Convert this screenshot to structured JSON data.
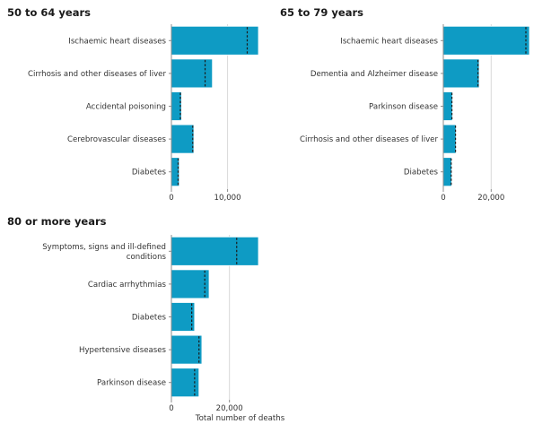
{
  "colors": {
    "bar": "#0e9bc4",
    "reference_line": "#1a1a1a"
  },
  "chart_data": [
    {
      "type": "bar",
      "orientation": "horizontal",
      "title": "50 to 64 years",
      "categories": [
        "Ischaemic heart diseases",
        "Cirrhosis and other diseases of liver",
        "Accidental poisoning",
        "Cerebrovascular diseases",
        "Diabetes"
      ],
      "values": [
        15500,
        7300,
        1800,
        4000,
        1400
      ],
      "reference_values": [
        13500,
        6000,
        1600,
        3800,
        1200
      ],
      "xlim": [
        0,
        15500
      ],
      "xticks": [
        0,
        10000
      ],
      "xtick_labels": [
        "0",
        "10,000"
      ],
      "xlabel": "",
      "grid": true,
      "legend": "none"
    },
    {
      "type": "bar",
      "orientation": "horizontal",
      "title": "65 to 79 years",
      "categories": [
        "Ischaemic heart diseases",
        "Dementia and Alzheimer disease",
        "Parkinson disease",
        "Cirrhosis and other diseases of liver",
        "Diabetes"
      ],
      "values": [
        36000,
        15000,
        3800,
        5300,
        3500
      ],
      "reference_values": [
        34500,
        14500,
        3600,
        5100,
        3300
      ],
      "xlim": [
        0,
        36000
      ],
      "xticks": [
        0,
        20000
      ],
      "xtick_labels": [
        "0",
        "20,000"
      ],
      "xlabel": "",
      "grid": true,
      "legend": "none"
    },
    {
      "type": "bar",
      "orientation": "horizontal",
      "title": "80 or more years",
      "categories": [
        "Symptoms, signs and ill-defined conditions",
        "Cardiac arrhythmias",
        "Diabetes",
        "Hypertensive diseases",
        "Parkinson disease"
      ],
      "values": [
        30000,
        13000,
        8000,
        10500,
        9500
      ],
      "reference_values": [
        22500,
        11500,
        7000,
        9500,
        8000
      ],
      "xlim": [
        0,
        30000
      ],
      "xticks": [
        0,
        20000
      ],
      "xtick_labels": [
        "0",
        "20,000"
      ],
      "xlabel": "Total number of deaths",
      "grid": true,
      "legend": "none"
    }
  ]
}
